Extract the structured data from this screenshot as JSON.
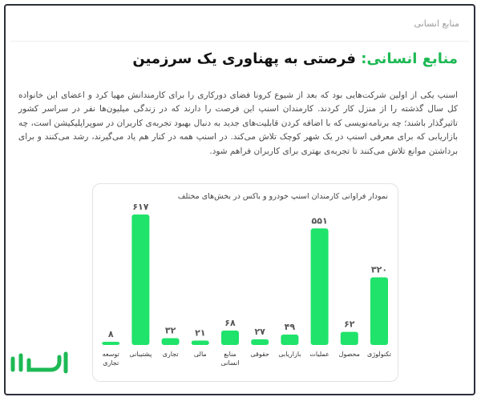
{
  "section_label": "منابع انسانی",
  "headline": {
    "accent": "منابع انسانی:",
    "rest": " فرصتی به پهناوری یک سرزمین"
  },
  "body_text": "اسنپ یکی از اولین شرکت‌هایی بود که بعد از شیوع کرونا فضای دورکاری را برای کارمندانش مهیا کرد و اعضای این خانواده کل سال گذشته را از منزل کار کردند. کارمندان اسنپ این فرصت را دارند که در زندگی میلیون‌ها نفر در سراسر کشور تاثیرگذار باشند؛ چه برنامه‌نویسی که با اضافه کردن قابلیت‌های جدید به دنبال بهبود تجربه‌ی کاربران در سوپراپلیکیشن است، چه بازاریابی که برای معرفی اسنپ در یک شهر کوچک تلاش می‌کند. در اسنپ همه در کنار هم یاد می‌گیرند، رشد می‌کنند و برای برداشتن موانع تلاش می‌کنند تا تجربه‌ی بهتری برای کاربران فراهم شود.",
  "colors": {
    "accent": "#1db954",
    "bar": "#1fe36a",
    "frame": "#2b2f38"
  },
  "chart_data": {
    "type": "bar",
    "title": "نمودار فراوانی کارمندان اسنپ خودرو و باکس در بخش‌های مختلف",
    "categories": [
      "تکنولوژی",
      "محصول",
      "عملیات",
      "بازاریابی",
      "حقوقی",
      "منابع انسانی",
      "مالی",
      "تجاری",
      "پشتیبانی",
      "توسعه تجاری"
    ],
    "values": [
      320,
      62,
      551,
      49,
      27,
      68,
      21,
      32,
      617,
      8
    ],
    "value_labels": [
      "۳۲۰",
      "۶۲",
      "۵۵۱",
      "۴۹",
      "۲۷",
      "۶۸",
      "۲۱",
      "۳۲",
      "۶۱۷",
      "۸"
    ],
    "ylim": [
      0,
      617
    ],
    "grid": false,
    "legend": "none"
  },
  "watermark_icon": "sarmaye-logo-icon"
}
